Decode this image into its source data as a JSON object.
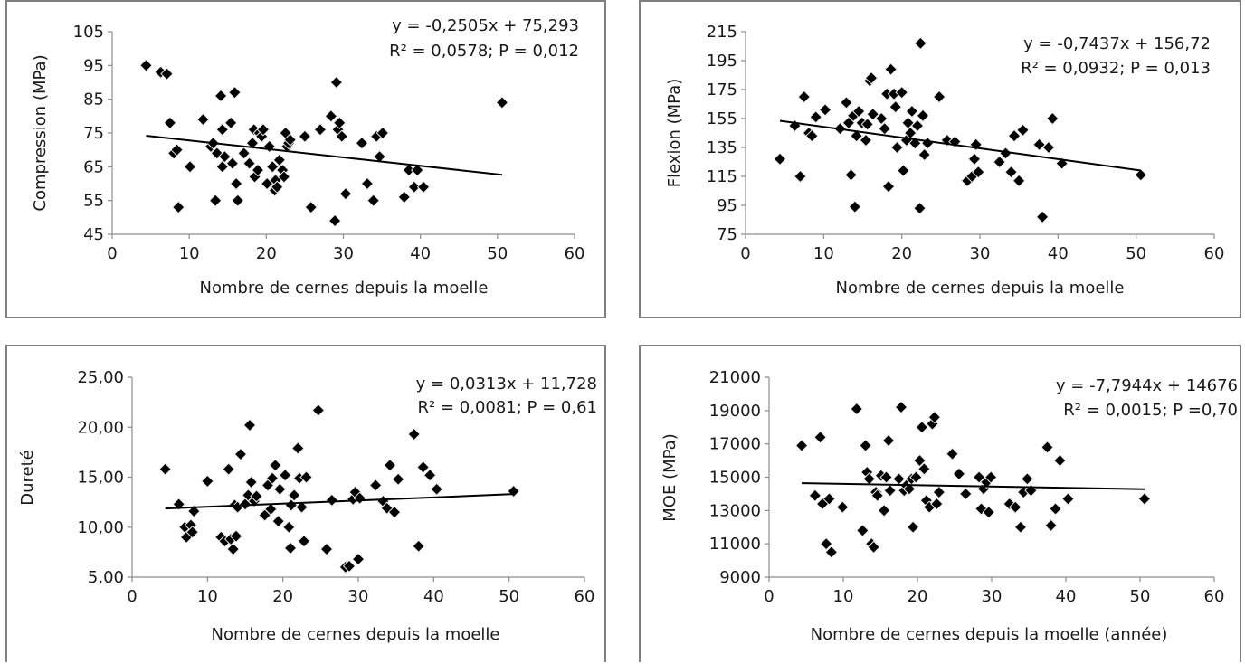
{
  "chart_data": [
    {
      "type": "scatter",
      "xlabel": "Nombre de cernes depuis la moelle",
      "ylabel": "Compression (MPa)",
      "xlim": [
        0,
        60
      ],
      "ylim": [
        45,
        105
      ],
      "x_ticks": [
        "0",
        "10",
        "20",
        "30",
        "40",
        "50",
        "60"
      ],
      "y_ticks": [
        "45",
        "55",
        "65",
        "75",
        "85",
        "95",
        "105"
      ],
      "equation": "y = -0,2505x + 75,293",
      "stats": "R² = 0,0578; P = 0,012",
      "trendline": {
        "slope": -0.2505,
        "intercept": 75.293,
        "x_range": [
          4.4,
          50.6
        ]
      },
      "points": [
        [
          4.4,
          95
        ],
        [
          6.3,
          93
        ],
        [
          7.1,
          92.5
        ],
        [
          7.5,
          78
        ],
        [
          8,
          69
        ],
        [
          8.4,
          70
        ],
        [
          8.6,
          53
        ],
        [
          10.1,
          65
        ],
        [
          11.8,
          79
        ],
        [
          12.8,
          71
        ],
        [
          13.1,
          72
        ],
        [
          13.4,
          55
        ],
        [
          13.6,
          69
        ],
        [
          14.1,
          86
        ],
        [
          14.3,
          76
        ],
        [
          14.3,
          65
        ],
        [
          14.6,
          68
        ],
        [
          15.4,
          78
        ],
        [
          15.6,
          66
        ],
        [
          15.9,
          87
        ],
        [
          16.1,
          60
        ],
        [
          16.3,
          55
        ],
        [
          17.1,
          69
        ],
        [
          17.8,
          66
        ],
        [
          18.2,
          72
        ],
        [
          18.4,
          76
        ],
        [
          18.5,
          62
        ],
        [
          18.9,
          64
        ],
        [
          19.1,
          75
        ],
        [
          19.4,
          74
        ],
        [
          19.6,
          76
        ],
        [
          20.1,
          60
        ],
        [
          20.4,
          71
        ],
        [
          20.8,
          65
        ],
        [
          21.1,
          58
        ],
        [
          21.2,
          61
        ],
        [
          21.4,
          59
        ],
        [
          21.7,
          67
        ],
        [
          22.1,
          64
        ],
        [
          22.3,
          62
        ],
        [
          22.5,
          75
        ],
        [
          22.7,
          71
        ],
        [
          22.9,
          72
        ],
        [
          23.1,
          73
        ],
        [
          25,
          74
        ],
        [
          25.8,
          53
        ],
        [
          27,
          76
        ],
        [
          28.4,
          80
        ],
        [
          28.9,
          49
        ],
        [
          29.1,
          90
        ],
        [
          29.3,
          76
        ],
        [
          29.5,
          78
        ],
        [
          29.8,
          74
        ],
        [
          30.3,
          57
        ],
        [
          32.4,
          72
        ],
        [
          33.1,
          60
        ],
        [
          33.9,
          55
        ],
        [
          34.3,
          74
        ],
        [
          34.7,
          68
        ],
        [
          35.1,
          75
        ],
        [
          37.9,
          56
        ],
        [
          38.5,
          64
        ],
        [
          39.2,
          59
        ],
        [
          39.6,
          64
        ],
        [
          40.4,
          59
        ],
        [
          50.6,
          84
        ]
      ]
    },
    {
      "type": "scatter",
      "xlabel": "Nombre de cernes depuis la moelle",
      "ylabel": "Flexion (MPa)",
      "xlim": [
        0,
        60
      ],
      "ylim": [
        75,
        215
      ],
      "x_ticks": [
        "0",
        "10",
        "20",
        "30",
        "40",
        "50",
        "60"
      ],
      "y_ticks": [
        "75",
        "95",
        "115",
        "135",
        "155",
        "175",
        "195",
        "215"
      ],
      "equation": "y = -0,7437x + 156,72",
      "stats": "R² = 0,0932; P = 0,013",
      "trendline": {
        "slope": -0.7437,
        "intercept": 156.72,
        "x_range": [
          4.4,
          50.6
        ]
      },
      "points": [
        [
          4.4,
          127
        ],
        [
          6.3,
          150
        ],
        [
          7,
          115
        ],
        [
          7.5,
          170
        ],
        [
          8.1,
          145
        ],
        [
          8.5,
          143
        ],
        [
          9,
          156
        ],
        [
          10.2,
          161
        ],
        [
          12.1,
          148
        ],
        [
          12.9,
          166
        ],
        [
          13.2,
          152
        ],
        [
          13.5,
          116
        ],
        [
          13.8,
          157
        ],
        [
          14,
          94
        ],
        [
          14.2,
          143
        ],
        [
          14.5,
          160
        ],
        [
          14.9,
          152
        ],
        [
          15.4,
          140
        ],
        [
          15.6,
          151
        ],
        [
          15.9,
          181
        ],
        [
          16.1,
          183
        ],
        [
          16.3,
          158
        ],
        [
          17.4,
          155
        ],
        [
          17.8,
          148
        ],
        [
          18.1,
          172
        ],
        [
          18.3,
          108
        ],
        [
          18.6,
          189
        ],
        [
          19,
          172
        ],
        [
          19.2,
          163
        ],
        [
          19.4,
          135
        ],
        [
          20,
          173
        ],
        [
          20.2,
          119
        ],
        [
          20.6,
          140
        ],
        [
          20.8,
          152
        ],
        [
          21.1,
          145
        ],
        [
          21.3,
          160
        ],
        [
          21.7,
          138
        ],
        [
          22,
          150
        ],
        [
          22.3,
          93
        ],
        [
          22.4,
          207
        ],
        [
          22.7,
          157
        ],
        [
          22.9,
          130
        ],
        [
          23.3,
          138
        ],
        [
          24.8,
          170
        ],
        [
          25.8,
          140
        ],
        [
          26.8,
          139
        ],
        [
          28.4,
          112
        ],
        [
          29,
          115
        ],
        [
          29.3,
          127
        ],
        [
          29.5,
          137
        ],
        [
          29.8,
          118
        ],
        [
          32.5,
          125
        ],
        [
          33.3,
          131
        ],
        [
          34,
          118
        ],
        [
          34.4,
          143
        ],
        [
          35,
          112
        ],
        [
          35.5,
          147
        ],
        [
          37.6,
          137
        ],
        [
          38,
          87
        ],
        [
          38.8,
          135
        ],
        [
          39.3,
          155
        ],
        [
          40.5,
          124
        ],
        [
          50.6,
          116
        ]
      ]
    },
    {
      "type": "scatter",
      "xlabel": "Nombre de cernes depuis la moelle",
      "ylabel": "Dureté",
      "xlim": [
        0,
        60
      ],
      "ylim": [
        5,
        25
      ],
      "x_ticks": [
        "0",
        "10",
        "20",
        "30",
        "40",
        "50",
        "60"
      ],
      "y_ticks": [
        "5,00",
        "10,00",
        "15,00",
        "20,00",
        "25,00"
      ],
      "equation": "y = 0,0313x + 11,728",
      "stats": "R² = 0,0081; P = 0,61",
      "trendline": {
        "slope": 0.0313,
        "intercept": 11.728,
        "x_range": [
          4.4,
          50.6
        ]
      },
      "points": [
        [
          4.4,
          15.8
        ],
        [
          6.2,
          12.3
        ],
        [
          7,
          10
        ],
        [
          7.2,
          9
        ],
        [
          7.8,
          10.2
        ],
        [
          8,
          9.5
        ],
        [
          8.2,
          11.6
        ],
        [
          10,
          14.6
        ],
        [
          11.8,
          9
        ],
        [
          12.3,
          8.6
        ],
        [
          12.8,
          15.8
        ],
        [
          13.1,
          8.8
        ],
        [
          13.4,
          7.8
        ],
        [
          13.6,
          12.2
        ],
        [
          13.8,
          9.1
        ],
        [
          14,
          12
        ],
        [
          14.4,
          17.3
        ],
        [
          15,
          12.3
        ],
        [
          15.4,
          13.2
        ],
        [
          15.6,
          20.2
        ],
        [
          15.8,
          14.5
        ],
        [
          16.2,
          12.6
        ],
        [
          16.5,
          13.1
        ],
        [
          17.6,
          11.2
        ],
        [
          18,
          14.2
        ],
        [
          18.4,
          11.8
        ],
        [
          18.6,
          14.9
        ],
        [
          19,
          16.2
        ],
        [
          19.4,
          10.6
        ],
        [
          19.6,
          13.8
        ],
        [
          20.3,
          15.2
        ],
        [
          20.8,
          10
        ],
        [
          21,
          7.9
        ],
        [
          21.1,
          12.2
        ],
        [
          21.5,
          13.2
        ],
        [
          22,
          17.9
        ],
        [
          22.2,
          14.9
        ],
        [
          22.5,
          12
        ],
        [
          22.8,
          8.6
        ],
        [
          23.1,
          15
        ],
        [
          24.7,
          21.7
        ],
        [
          25.8,
          7.8
        ],
        [
          26.5,
          12.7
        ],
        [
          28.3,
          6
        ],
        [
          28.8,
          6.1
        ],
        [
          29.3,
          12.8
        ],
        [
          29.6,
          13.5
        ],
        [
          30,
          6.8
        ],
        [
          30.2,
          12.9
        ],
        [
          32.3,
          14.2
        ],
        [
          33.3,
          12.6
        ],
        [
          33.8,
          11.9
        ],
        [
          34.2,
          16.2
        ],
        [
          34.8,
          11.5
        ],
        [
          35.3,
          14.8
        ],
        [
          37.4,
          19.3
        ],
        [
          38,
          8.1
        ],
        [
          38.6,
          16
        ],
        [
          39.5,
          15.2
        ],
        [
          40.4,
          13.8
        ],
        [
          50.6,
          13.6
        ]
      ]
    },
    {
      "type": "scatter",
      "xlabel": "Nombre de cernes depuis la moelle (année)",
      "ylabel": "MOE (MPa)",
      "xlim": [
        0,
        60
      ],
      "ylim": [
        9000,
        21000
      ],
      "x_ticks": [
        "0",
        "10",
        "20",
        "30",
        "40",
        "50",
        "60"
      ],
      "y_ticks": [
        "9000",
        "11000",
        "13000",
        "15000",
        "17000",
        "19000",
        "21000"
      ],
      "equation": "y = -7,7944x + 14676",
      "stats": "R² = 0,0015; P =0,70",
      "trendline": {
        "slope": -7.7944,
        "intercept": 14676,
        "x_range": [
          4.4,
          50.6
        ]
      },
      "points": [
        [
          4.4,
          16900
        ],
        [
          6.2,
          13900
        ],
        [
          6.9,
          17400
        ],
        [
          7.2,
          13400
        ],
        [
          7.7,
          11000
        ],
        [
          8.1,
          13700
        ],
        [
          8.4,
          10500
        ],
        [
          9.9,
          13200
        ],
        [
          11.8,
          19100
        ],
        [
          12.6,
          11800
        ],
        [
          13,
          16900
        ],
        [
          13.2,
          15300
        ],
        [
          13.5,
          14900
        ],
        [
          13.8,
          11000
        ],
        [
          14.1,
          10800
        ],
        [
          14.4,
          14100
        ],
        [
          14.6,
          13900
        ],
        [
          15.1,
          15100
        ],
        [
          15.5,
          13000
        ],
        [
          15.8,
          15000
        ],
        [
          16.1,
          17200
        ],
        [
          16.3,
          14200
        ],
        [
          17.5,
          14900
        ],
        [
          17.8,
          19200
        ],
        [
          18.2,
          14200
        ],
        [
          18.5,
          14500
        ],
        [
          18.9,
          14300
        ],
        [
          19.2,
          14900
        ],
        [
          19.4,
          12000
        ],
        [
          19.8,
          15000
        ],
        [
          20.3,
          16000
        ],
        [
          20.6,
          18000
        ],
        [
          20.9,
          15500
        ],
        [
          21.2,
          13600
        ],
        [
          21.6,
          13200
        ],
        [
          22,
          18200
        ],
        [
          22.3,
          18600
        ],
        [
          22.6,
          13400
        ],
        [
          22.9,
          14100
        ],
        [
          24.7,
          16400
        ],
        [
          25.6,
          15200
        ],
        [
          26.5,
          14000
        ],
        [
          28.3,
          15000
        ],
        [
          28.6,
          13100
        ],
        [
          28.9,
          14300
        ],
        [
          29.3,
          14700
        ],
        [
          29.6,
          12900
        ],
        [
          29.9,
          15000
        ],
        [
          32.4,
          13400
        ],
        [
          33.2,
          13200
        ],
        [
          33.9,
          12000
        ],
        [
          34.3,
          14100
        ],
        [
          34.8,
          14900
        ],
        [
          35.3,
          14200
        ],
        [
          37.5,
          16800
        ],
        [
          38,
          12100
        ],
        [
          38.6,
          13100
        ],
        [
          39.2,
          16000
        ],
        [
          40.3,
          13700
        ],
        [
          50.6,
          13700
        ]
      ]
    }
  ]
}
